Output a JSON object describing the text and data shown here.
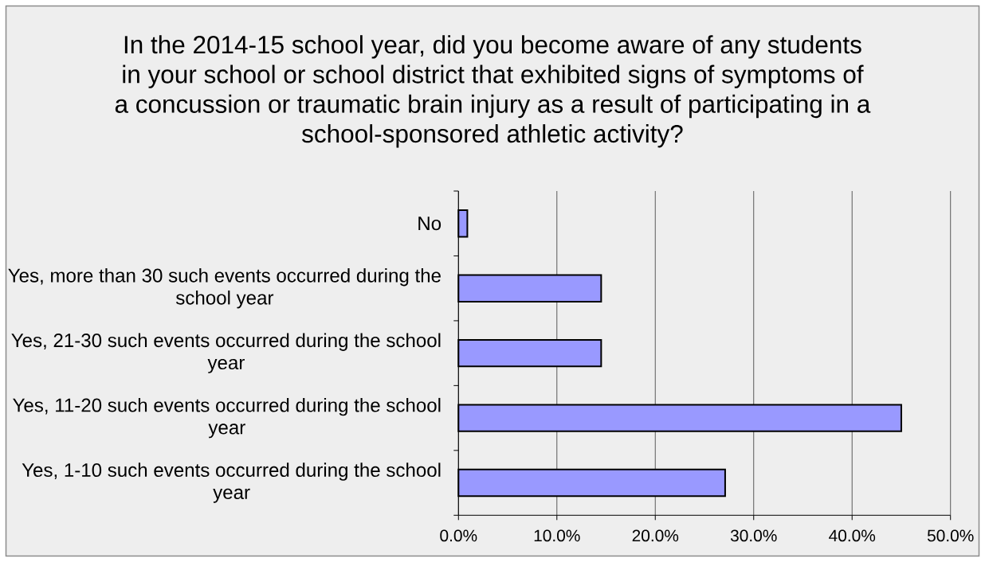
{
  "chart_data": {
    "type": "bar",
    "orientation": "horizontal",
    "title": "In the 2014-15 school year, did you become aware of any students in your school or school district that exhibited signs of symptoms of a concussion or traumatic brain injury as a result of participating in a school-sponsored athletic activity?",
    "categories": [
      "No",
      "Yes, more than 30 such events occurred during the school year",
      "Yes, 21-30 such events occurred during the school year",
      "Yes, 11-20 such events occurred during the school year",
      "Yes, 1-10 such events occurred during the school year"
    ],
    "values": [
      0.9,
      14.5,
      14.5,
      45.0,
      27.1
    ],
    "color": "#9999ff",
    "xlim": [
      0,
      50
    ],
    "xticks": [
      {
        "value": 0,
        "label": "0.0%"
      },
      {
        "value": 10,
        "label": "10.0%"
      },
      {
        "value": 20,
        "label": "20.0%"
      },
      {
        "value": 30,
        "label": "30.0%"
      },
      {
        "value": 40,
        "label": "40.0%"
      },
      {
        "value": 50,
        "label": "50.0%"
      }
    ],
    "grid": "x"
  }
}
